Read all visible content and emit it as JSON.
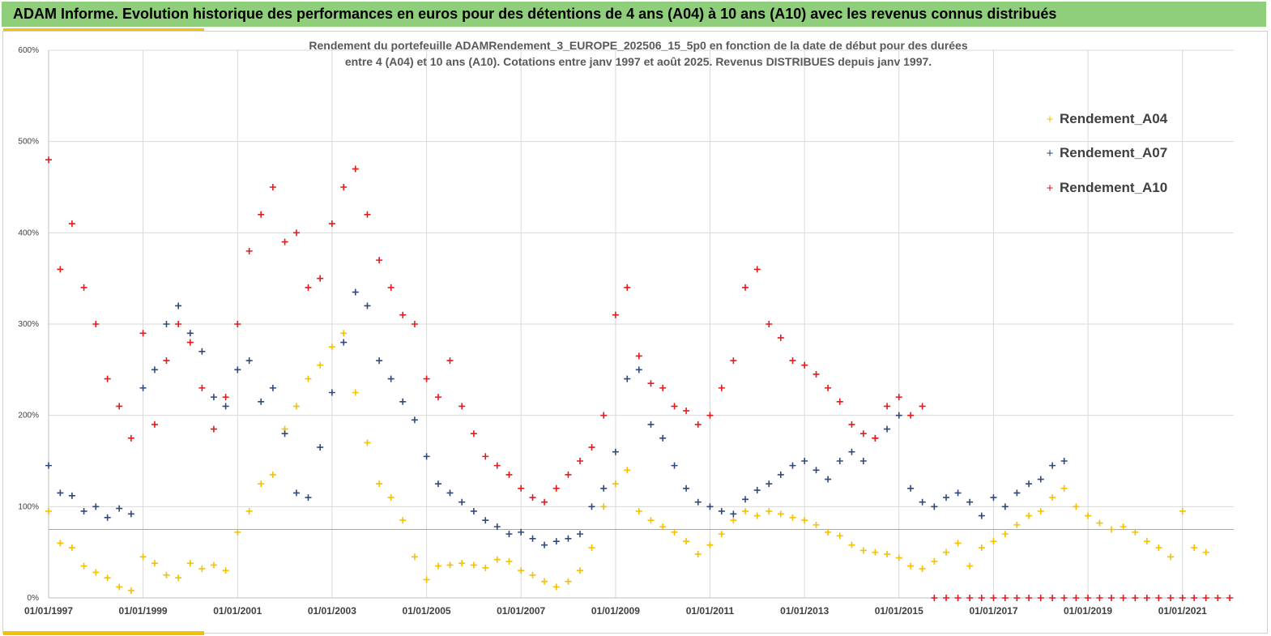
{
  "banner": {
    "title": "ADAM Informe. Evolution historique des performances en euros pour des détentions de 4 ans (A04) à 10 ans (A10) avec les revenus connus distribués"
  },
  "colors": {
    "banner_bg": "#8fce7a",
    "accent": "#f2c200",
    "A04": "#f5c000",
    "A07": "#2f4a7a",
    "A10": "#e41a1c"
  },
  "chart_data": {
    "type": "scatter",
    "title_lines": [
      "Rendement du portefeuille ADAMRendement_3_EUROPE_202506_15_5p0  en fonction de la date de début pour des durées",
      "entre 4 (A04) et 10 ans (A10). Cotations entre janv 1997 et août 2025. Revenus DISTRIBUES depuis janv 1997."
    ],
    "x_axis": {
      "type": "date",
      "range": [
        "1997-01-01",
        "2022-02-01"
      ],
      "tick_labels": [
        "01/01/1997",
        "01/01/1999",
        "01/01/2001",
        "01/01/2003",
        "01/01/2005",
        "01/01/2007",
        "01/01/2009",
        "01/01/2011",
        "01/01/2013",
        "01/01/2015",
        "01/01/2017",
        "01/01/2019",
        "01/01/2021"
      ]
    },
    "y_axis": {
      "range": [
        0,
        600
      ],
      "unit": "%",
      "tick_labels": [
        "0%",
        "100%",
        "200%",
        "300%",
        "400%",
        "500%",
        "600%"
      ]
    },
    "reference_line_y": 75,
    "grid": "vertical and horizontal",
    "legend": {
      "position": "top-right",
      "marker": "+",
      "entries": [
        "Rendement_A04",
        "Rendement_A07",
        "Rendement_A10"
      ]
    },
    "series": [
      {
        "name": "Rendement_A04",
        "color": "#f5c000",
        "x": [
          "1997-01-01",
          "1997-04-01",
          "1997-07-01",
          "1997-10-01",
          "1998-01-01",
          "1998-04-01",
          "1998-07-01",
          "1998-10-01",
          "1999-01-01",
          "1999-04-01",
          "1999-07-01",
          "1999-10-01",
          "2000-01-01",
          "2000-04-01",
          "2000-07-01",
          "2000-10-01",
          "2001-01-01",
          "2001-04-01",
          "2001-07-01",
          "2001-10-01",
          "2002-01-01",
          "2002-04-01",
          "2002-07-01",
          "2002-10-01",
          "2003-01-01",
          "2003-04-01",
          "2003-07-01",
          "2003-10-01",
          "2004-01-01",
          "2004-04-01",
          "2004-07-01",
          "2004-10-01",
          "2005-01-01",
          "2005-04-01",
          "2005-07-01",
          "2005-10-01",
          "2006-01-01",
          "2006-04-01",
          "2006-07-01",
          "2006-10-01",
          "2007-01-01",
          "2007-04-01",
          "2007-07-01",
          "2007-10-01",
          "2008-01-01",
          "2008-04-01",
          "2008-07-01",
          "2008-10-01",
          "2009-01-01",
          "2009-04-01",
          "2009-07-01",
          "2009-10-01",
          "2010-01-01",
          "2010-04-01",
          "2010-07-01",
          "2010-10-01",
          "2011-01-01",
          "2011-04-01",
          "2011-07-01",
          "2011-10-01",
          "2012-01-01",
          "2012-04-01",
          "2012-07-01",
          "2012-10-01",
          "2013-01-01",
          "2013-04-01",
          "2013-07-01",
          "2013-10-01",
          "2014-01-01",
          "2014-04-01",
          "2014-07-01",
          "2014-10-01",
          "2015-01-01",
          "2015-04-01",
          "2015-07-01",
          "2015-10-01",
          "2016-01-01",
          "2016-04-01",
          "2016-07-01",
          "2016-10-01",
          "2017-01-01",
          "2017-04-01",
          "2017-07-01",
          "2017-10-01",
          "2018-01-01",
          "2018-04-01",
          "2018-07-01",
          "2018-10-01",
          "2019-01-01",
          "2019-04-01",
          "2019-07-01",
          "2019-10-01",
          "2020-01-01",
          "2020-04-01",
          "2020-07-01",
          "2020-10-01",
          "2021-01-01",
          "2021-04-01",
          "2021-07-01"
        ],
        "y": [
          95,
          60,
          55,
          35,
          28,
          22,
          12,
          8,
          45,
          38,
          25,
          22,
          38,
          32,
          36,
          30,
          72,
          95,
          125,
          135,
          185,
          210,
          240,
          255,
          275,
          290,
          225,
          170,
          125,
          110,
          85,
          45,
          20,
          35,
          36,
          38,
          36,
          33,
          42,
          40,
          30,
          25,
          18,
          12,
          18,
          30,
          55,
          100,
          125,
          140,
          95,
          85,
          78,
          72,
          62,
          48,
          58,
          70,
          85,
          95,
          90,
          95,
          92,
          88,
          85,
          80,
          72,
          68,
          58,
          52,
          50,
          48,
          44,
          35,
          32,
          40,
          50,
          60,
          35,
          55,
          62,
          70,
          80,
          90,
          95,
          110,
          120,
          100,
          90,
          82,
          75,
          78,
          72,
          62,
          55,
          45,
          95,
          55,
          50
        ]
      },
      {
        "name": "Rendement_A07",
        "color": "#2f4a7a",
        "x": [
          "1997-01-01",
          "1997-04-01",
          "1997-07-01",
          "1997-10-01",
          "1998-01-01",
          "1998-04-01",
          "1998-07-01",
          "1998-10-01",
          "1999-01-01",
          "1999-04-01",
          "1999-07-01",
          "1999-10-01",
          "2000-01-01",
          "2000-04-01",
          "2000-07-01",
          "2000-10-01",
          "2001-01-01",
          "2001-04-01",
          "2001-07-01",
          "2001-10-01",
          "2002-01-01",
          "2002-04-01",
          "2002-07-01",
          "2002-10-01",
          "2003-01-01",
          "2003-04-01",
          "2003-07-01",
          "2003-10-01",
          "2004-01-01",
          "2004-04-01",
          "2004-07-01",
          "2004-10-01",
          "2005-01-01",
          "2005-04-01",
          "2005-07-01",
          "2005-10-01",
          "2006-01-01",
          "2006-04-01",
          "2006-07-01",
          "2006-10-01",
          "2007-01-01",
          "2007-04-01",
          "2007-07-01",
          "2007-10-01",
          "2008-01-01",
          "2008-04-01",
          "2008-07-01",
          "2008-10-01",
          "2009-01-01",
          "2009-04-01",
          "2009-07-01",
          "2009-10-01",
          "2010-01-01",
          "2010-04-01",
          "2010-07-01",
          "2010-10-01",
          "2011-01-01",
          "2011-04-01",
          "2011-07-01",
          "2011-10-01",
          "2012-01-01",
          "2012-04-01",
          "2012-07-01",
          "2012-10-01",
          "2013-01-01",
          "2013-04-01",
          "2013-07-01",
          "2013-10-01",
          "2014-01-01",
          "2014-04-01",
          "2014-07-01",
          "2014-10-01",
          "2015-01-01",
          "2015-04-01",
          "2015-07-01",
          "2015-10-01",
          "2016-01-01",
          "2016-04-01",
          "2016-07-01",
          "2016-10-01",
          "2017-01-01",
          "2017-04-01",
          "2017-07-01",
          "2017-10-01",
          "2018-01-01",
          "2018-04-01",
          "2018-07-01"
        ],
        "y": [
          145,
          115,
          112,
          95,
          100,
          88,
          98,
          92,
          230,
          250,
          300,
          320,
          290,
          270,
          220,
          210,
          250,
          260,
          215,
          230,
          180,
          115,
          110,
          165,
          225,
          280,
          335,
          320,
          260,
          240,
          215,
          195,
          155,
          125,
          115,
          105,
          95,
          85,
          78,
          70,
          72,
          65,
          58,
          62,
          65,
          70,
          100,
          120,
          160,
          240,
          250,
          190,
          175,
          145,
          120,
          105,
          100,
          95,
          92,
          108,
          118,
          125,
          135,
          145,
          150,
          140,
          130,
          150,
          160,
          150,
          175,
          185,
          200,
          120,
          105,
          100,
          110,
          115,
          105,
          90,
          110,
          100,
          115,
          125,
          130,
          145,
          150
        ]
      },
      {
        "name": "Rendement_A10",
        "color": "#e41a1c",
        "x": [
          "1997-01-01",
          "1997-04-01",
          "1997-07-01",
          "1997-10-01",
          "1998-01-01",
          "1998-04-01",
          "1998-07-01",
          "1998-10-01",
          "1999-01-01",
          "1999-04-01",
          "1999-07-01",
          "1999-10-01",
          "2000-01-01",
          "2000-04-01",
          "2000-07-01",
          "2000-10-01",
          "2001-01-01",
          "2001-04-01",
          "2001-07-01",
          "2001-10-01",
          "2002-01-01",
          "2002-04-01",
          "2002-07-01",
          "2002-10-01",
          "2003-01-01",
          "2003-04-01",
          "2003-07-01",
          "2003-10-01",
          "2004-01-01",
          "2004-04-01",
          "2004-07-01",
          "2004-10-01",
          "2005-01-01",
          "2005-04-01",
          "2005-07-01",
          "2005-10-01",
          "2006-01-01",
          "2006-04-01",
          "2006-07-01",
          "2006-10-01",
          "2007-01-01",
          "2007-04-01",
          "2007-07-01",
          "2007-10-01",
          "2008-01-01",
          "2008-04-01",
          "2008-07-01",
          "2008-10-01",
          "2009-01-01",
          "2009-04-01",
          "2009-07-01",
          "2009-10-01",
          "2010-01-01",
          "2010-04-01",
          "2010-07-01",
          "2010-10-01",
          "2011-01-01",
          "2011-04-01",
          "2011-07-01",
          "2011-10-01",
          "2012-01-01",
          "2012-04-01",
          "2012-07-01",
          "2012-10-01",
          "2013-01-01",
          "2013-04-01",
          "2013-07-01",
          "2013-10-01",
          "2014-01-01",
          "2014-04-01",
          "2014-07-01",
          "2014-10-01",
          "2015-01-01",
          "2015-04-01",
          "2015-07-01"
        ],
        "y": [
          480,
          360,
          410,
          340,
          300,
          240,
          210,
          175,
          290,
          190,
          260,
          300,
          280,
          230,
          185,
          220,
          300,
          380,
          420,
          450,
          390,
          400,
          340,
          350,
          410,
          450,
          470,
          420,
          370,
          340,
          310,
          300,
          240,
          220,
          260,
          210,
          180,
          155,
          145,
          135,
          120,
          110,
          105,
          120,
          135,
          150,
          165,
          200,
          310,
          340,
          265,
          235,
          230,
          210,
          205,
          190,
          200,
          230,
          260,
          340,
          360,
          300,
          285,
          260,
          255,
          245,
          230,
          215,
          190,
          180,
          175,
          210,
          220,
          200,
          210
        ]
      },
      {
        "name": "Rendement_A10",
        "color": "#e41a1c",
        "x": [
          "2015-10-01",
          "2016-01-01",
          "2016-04-01",
          "2016-07-01",
          "2016-10-01",
          "2017-01-01",
          "2017-04-01",
          "2017-07-01",
          "2017-10-01",
          "2018-01-01",
          "2018-04-01",
          "2018-07-01",
          "2018-10-01",
          "2019-01-01",
          "2019-04-01",
          "2019-07-01",
          "2019-10-01",
          "2020-01-01",
          "2020-04-01",
          "2020-07-01",
          "2020-10-01",
          "2021-01-01",
          "2021-04-01",
          "2021-07-01",
          "2021-10-01",
          "2022-01-01"
        ],
        "y": [
          0,
          0,
          0,
          0,
          0,
          0,
          0,
          0,
          0,
          0,
          0,
          0,
          0,
          0,
          0,
          0,
          0,
          0,
          0,
          0,
          0,
          0,
          0,
          0,
          0,
          0
        ]
      }
    ]
  }
}
